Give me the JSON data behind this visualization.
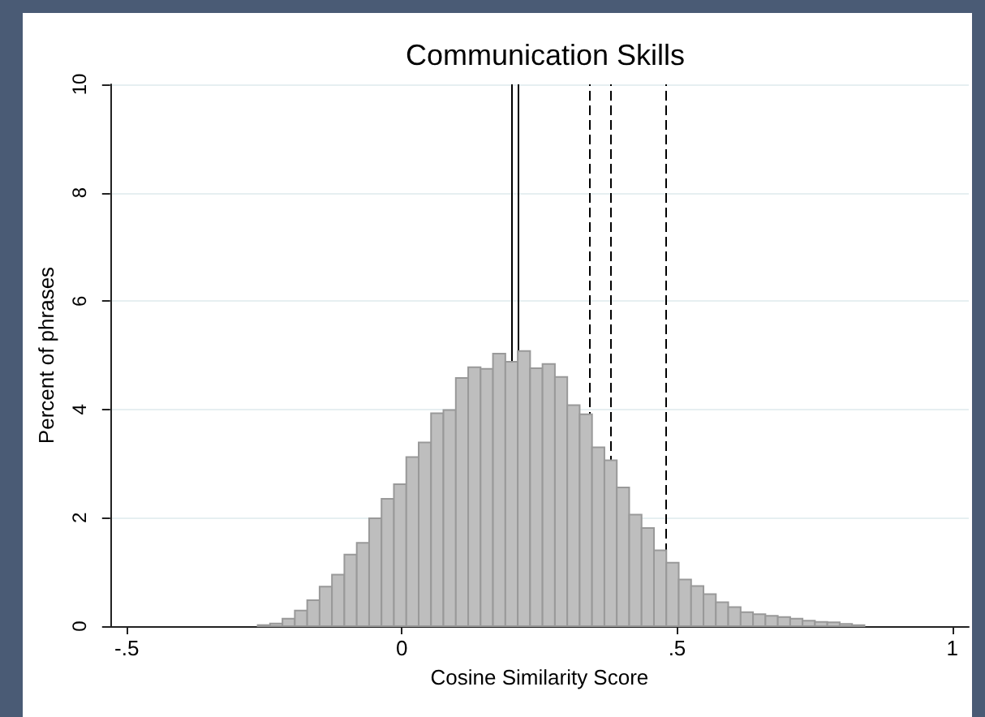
{
  "chart_data": {
    "type": "histogram",
    "title": "Communication Skills",
    "xlabel": "Cosine Similarity Score",
    "ylabel": "Percent of phrases",
    "bins": [
      -0.262,
      -0.2395,
      -0.217,
      -0.1945,
      -0.172,
      -0.1495,
      -0.127,
      -0.1045,
      -0.082,
      -0.0595,
      -0.037,
      -0.0145,
      0.008,
      0.0305,
      0.053,
      0.0755,
      0.098,
      0.1205,
      0.143,
      0.1655,
      0.188,
      0.2105,
      0.233,
      0.2555,
      0.278,
      0.3005,
      0.323,
      0.3455,
      0.368,
      0.3905,
      0.413,
      0.4355,
      0.458,
      0.4805,
      0.503,
      0.5255,
      0.548,
      0.5705,
      0.593,
      0.6155,
      0.638,
      0.6605,
      0.683,
      0.7055,
      0.728,
      0.7505,
      0.773,
      0.7955,
      0.818,
      0.8405
    ],
    "values": [
      0.02,
      0.05,
      0.14,
      0.29,
      0.48,
      0.73,
      0.95,
      1.32,
      1.54,
      1.99,
      2.35,
      2.62,
      3.12,
      3.39,
      3.93,
      3.99,
      4.58,
      4.78,
      4.75,
      5.03,
      4.88,
      5.08,
      4.76,
      4.84,
      4.6,
      4.08,
      3.91,
      3.3,
      3.06,
      2.56,
      2.06,
      1.81,
      1.4,
      1.17,
      0.86,
      0.74,
      0.59,
      0.44,
      0.35,
      0.26,
      0.22,
      0.19,
      0.17,
      0.14,
      0.1,
      0.08,
      0.07,
      0.04,
      0.02
    ],
    "color": "#bebebe",
    "xlim": [
      -0.53,
      1.03
    ],
    "xticks": [
      {
        "value": -0.5,
        "label": "-.5"
      },
      0,
      {
        "value": 0.5,
        "label": ".5"
      },
      1
    ],
    "ylim": [
      0,
      10
    ],
    "yticks": [
      0,
      2,
      4,
      6,
      8,
      10
    ],
    "grid": "y",
    "ref_lines": [
      {
        "axis": "x",
        "value": 0.201,
        "color": "#000000",
        "line_style": "solid"
      },
      {
        "axis": "x",
        "value": 0.211,
        "color": "#000000",
        "line_style": "solid"
      },
      {
        "axis": "x",
        "value": 0.341,
        "color": "#000000",
        "line_style": "dashed"
      },
      {
        "axis": "x",
        "value": 0.381,
        "color": "#000000",
        "line_style": "dashed"
      },
      {
        "axis": "x",
        "value": 0.482,
        "color": "#000000",
        "line_style": "dashed"
      }
    ]
  }
}
